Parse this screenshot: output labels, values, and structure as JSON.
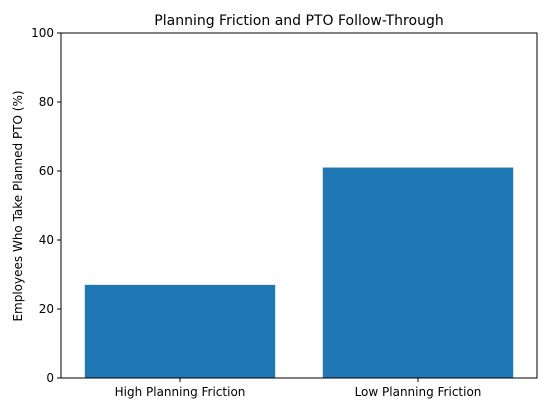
{
  "chart_data": {
    "type": "bar",
    "title": "Planning Friction and PTO Follow-Through",
    "xlabel": "",
    "ylabel": "Employees Who Take Planned PTO (%)",
    "categories": [
      "High Planning Friction",
      "Low Planning Friction"
    ],
    "values": [
      27,
      61
    ],
    "ylim": [
      0,
      100
    ],
    "yticks": [
      0,
      20,
      40,
      60,
      80,
      100
    ],
    "grid": false,
    "bar_color": "#1f77b4"
  }
}
